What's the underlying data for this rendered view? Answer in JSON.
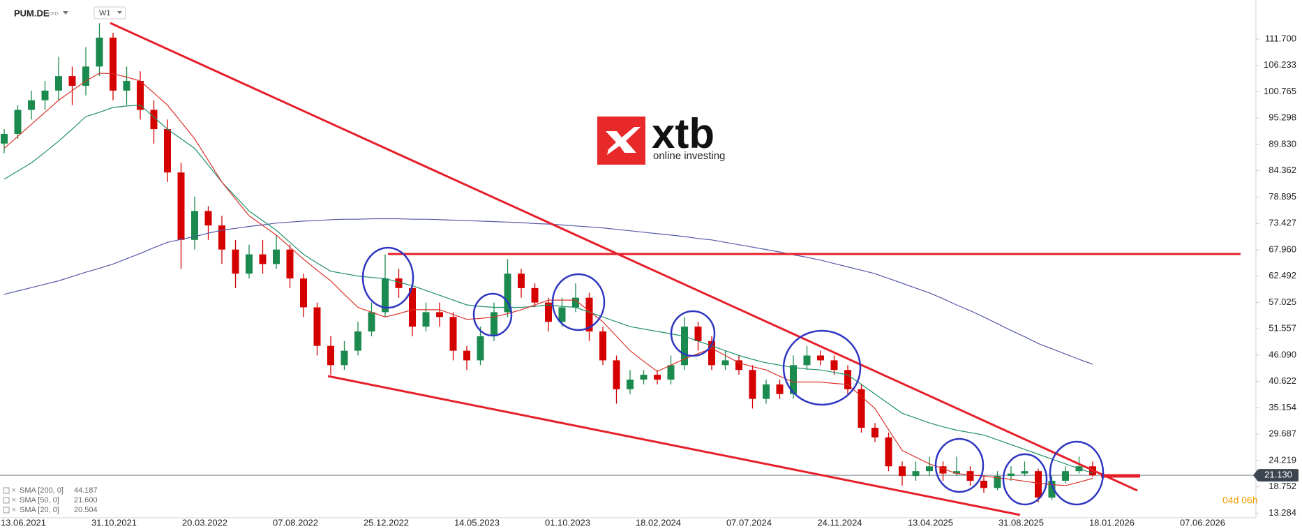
{
  "chart_data": {
    "type": "candlestick",
    "symbol": "PUM.DE",
    "instrument_type": "CFD",
    "interval": "W1",
    "logo": {
      "name": "xtb",
      "tagline": "online investing"
    },
    "countdown": "04d 06h",
    "ylim": [
      12.32,
      119.81
    ],
    "yticks": [
      {
        "value": 111.7,
        "label": "111.700"
      },
      {
        "value": 106.233,
        "label": "106.233"
      },
      {
        "value": 100.765,
        "label": "100.765"
      },
      {
        "value": 95.298,
        "label": "95.298"
      },
      {
        "value": 89.83,
        "label": "89.830"
      },
      {
        "value": 84.362,
        "label": "84.362"
      },
      {
        "value": 78.895,
        "label": "78.895"
      },
      {
        "value": 73.427,
        "label": "73.427"
      },
      {
        "value": 67.96,
        "label": "67.960"
      },
      {
        "value": 62.492,
        "label": "62.492"
      },
      {
        "value": 57.025,
        "label": "57.025"
      },
      {
        "value": 51.557,
        "label": "51.557"
      },
      {
        "value": 46.09,
        "label": "46.090"
      },
      {
        "value": 40.622,
        "label": "40.622"
      },
      {
        "value": 35.154,
        "label": "35.154"
      },
      {
        "value": 29.687,
        "label": "29.687"
      },
      {
        "value": 24.219,
        "label": "24.219"
      },
      {
        "value": 18.752,
        "label": "18.752"
      },
      {
        "value": 13.284,
        "label": "13.284"
      }
    ],
    "xticks": [
      "13.06.2021",
      "31.10.2021",
      "20.03.2022",
      "07.08.2022",
      "25.12.2022",
      "14.05.2023",
      "01.10.2023",
      "18.02.2024",
      "07.07.2024",
      "24.11.2024",
      "13.04.2025",
      "31.08.2025",
      "18.01.2026",
      "07.06.2026"
    ],
    "grid": false,
    "up_color": "#1b8a4e",
    "down_color": "#d50000",
    "last_price": {
      "value": 21.13,
      "label": "21.130"
    },
    "open": [
      90,
      92,
      97,
      99,
      101,
      104,
      102,
      106,
      112,
      101,
      103,
      97,
      93,
      84,
      70,
      76,
      73,
      68,
      63,
      67,
      65,
      68,
      62,
      56,
      48,
      44,
      47,
      51,
      55,
      62,
      60,
      52,
      55,
      54,
      47,
      45,
      50,
      55,
      63,
      60,
      57,
      53,
      56,
      58,
      51,
      45,
      39,
      41,
      42,
      41,
      44,
      52,
      49,
      44,
      45,
      43,
      37,
      40,
      38,
      44,
      46,
      45,
      43,
      39,
      31,
      29,
      23,
      21,
      22,
      23,
      21.5,
      22,
      20,
      18.5,
      21,
      21.5,
      22,
      16.5,
      20,
      22,
      23
    ],
    "high": [
      93,
      98,
      101,
      103,
      108,
      106,
      110,
      115,
      113,
      106,
      105,
      99,
      95,
      86,
      79,
      77,
      75,
      70,
      69,
      70,
      71,
      69,
      63,
      57,
      50,
      49,
      53,
      57,
      67,
      64,
      61,
      57,
      57,
      55,
      48,
      52,
      57,
      66,
      64,
      61,
      58,
      58,
      61,
      59,
      52,
      46,
      43,
      43,
      43,
      46,
      54,
      53,
      50,
      47,
      46,
      44,
      41,
      41,
      46,
      48,
      47,
      46,
      44,
      40,
      32,
      30,
      24,
      24,
      25,
      24,
      25,
      23,
      21,
      22,
      23,
      24,
      22.5,
      21,
      23,
      25,
      24
    ],
    "low": [
      88,
      91,
      95,
      97,
      99,
      98,
      100,
      104,
      99,
      98,
      95,
      90,
      82,
      64,
      68,
      70,
      65,
      60,
      62,
      63,
      64,
      60,
      54,
      46,
      42,
      43,
      46,
      50,
      54,
      58,
      50,
      51,
      52,
      45,
      43,
      44,
      49,
      54,
      58,
      56,
      51,
      52,
      55,
      49,
      44,
      36,
      38,
      40,
      40,
      40,
      43,
      47,
      43,
      43,
      42,
      35,
      36,
      37,
      37,
      43,
      44,
      42,
      38,
      30,
      28,
      22,
      19,
      20,
      21,
      20,
      21,
      19,
      17.5,
      18,
      20,
      21,
      15.5,
      16,
      19.5,
      21.5,
      20.8
    ],
    "close": [
      92,
      97,
      99,
      101,
      104,
      102,
      106,
      112,
      101,
      103,
      97,
      93,
      84,
      70,
      76,
      73,
      68,
      63,
      67,
      65,
      68,
      62,
      56,
      48,
      44,
      47,
      51,
      55,
      62,
      60,
      52,
      55,
      54,
      47,
      45,
      50,
      55,
      63,
      60,
      57,
      53,
      56,
      58,
      51,
      45,
      39,
      41,
      42,
      41,
      44,
      52,
      49,
      44,
      45,
      43,
      37,
      40,
      38,
      44,
      46,
      45,
      43,
      39,
      31,
      29,
      23,
      21,
      22,
      23,
      21.5,
      22,
      20,
      18.5,
      21,
      21.5,
      22,
      16.5,
      20,
      22,
      23,
      21.13
    ],
    "series": [
      {
        "name": "SMA [200, 0]",
        "color": "#5558a8",
        "last": 44.187,
        "values": [
          58.7,
          59.4,
          60.1,
          60.8,
          61.5,
          62.4,
          63.3,
          64.1,
          65.0,
          66.1,
          67.2,
          68.4,
          69.5,
          70.1,
          70.7,
          71.4,
          72.0,
          72.4,
          72.8,
          73.1,
          73.5,
          73.7,
          73.9,
          74.0,
          74.2,
          74.3,
          74.3,
          74.4,
          74.4,
          74.4,
          74.3,
          74.3,
          74.2,
          74.1,
          74.0,
          73.9,
          73.8,
          73.7,
          73.6,
          73.4,
          73.3,
          73.1,
          72.9,
          72.7,
          72.5,
          72.2,
          71.9,
          71.6,
          71.3,
          71.0,
          70.7,
          70.3,
          70.0,
          69.5,
          69.0,
          68.5,
          68.0,
          67.5,
          66.9,
          66.4,
          65.8,
          65.1,
          64.4,
          63.7,
          63.0,
          62.0,
          61.0,
          60.0,
          59.0,
          57.8,
          56.5,
          55.3,
          54.0,
          52.6,
          51.2,
          49.9,
          48.5,
          47.4,
          46.3,
          45.2,
          44.187
        ]
      },
      {
        "name": "SMA [50, 0]",
        "color": "#1f9068",
        "last": {
          "value": 21.6,
          "label": "21.600"
        },
        "values": [
          82.6,
          84.3,
          86,
          88.2,
          90.5,
          93,
          95.6,
          96.5,
          97.5,
          97.8,
          98,
          95.5,
          93,
          91,
          89,
          85.5,
          82,
          79,
          76,
          74,
          72,
          69.5,
          67,
          65.2,
          63.5,
          63,
          62.5,
          62.2,
          62,
          61.2,
          60.5,
          59.5,
          58.5,
          57.5,
          56.5,
          56.2,
          56,
          56,
          56,
          56.2,
          56.5,
          56.2,
          56,
          55,
          54,
          53,
          52,
          51.5,
          51,
          50.5,
          50,
          49,
          48,
          47,
          46,
          45.2,
          44.5,
          44,
          43.5,
          43.2,
          43,
          42.5,
          42,
          40,
          38,
          36,
          34,
          33,
          32,
          31.2,
          30.5,
          30,
          29.5,
          28.5,
          27.5,
          26.5,
          25.5,
          24.5,
          23.5,
          22.5,
          21.6
        ]
      },
      {
        "name": "SMA [20, 0]",
        "color": "#d9342b",
        "last": 20.504,
        "values": [
          89,
          91.5,
          94,
          96.5,
          99,
          101,
          103,
          104.6,
          104.5,
          103.8,
          103,
          100.5,
          98,
          94.5,
          91,
          86.5,
          82,
          78.5,
          75,
          73,
          71,
          68.5,
          66,
          63.7,
          61.5,
          58.7,
          56,
          55,
          54,
          54.7,
          55.5,
          55.5,
          55.5,
          54.5,
          53.5,
          53.7,
          54,
          54.7,
          55.5,
          56.5,
          57.5,
          57.5,
          57.5,
          55.2,
          53,
          50,
          47,
          44.8,
          42.7,
          44,
          45.3,
          46.4,
          47.5,
          46,
          44.5,
          43.7,
          43,
          41.7,
          40.5,
          40.5,
          40.5,
          40.2,
          40,
          37.5,
          35,
          30.6,
          26.3,
          24.9,
          23.5,
          22.5,
          21.5,
          21.2,
          21,
          20.6,
          20.3,
          19.9,
          19.5,
          19.2,
          19,
          19.7,
          20.504
        ]
      }
    ]
  }
}
